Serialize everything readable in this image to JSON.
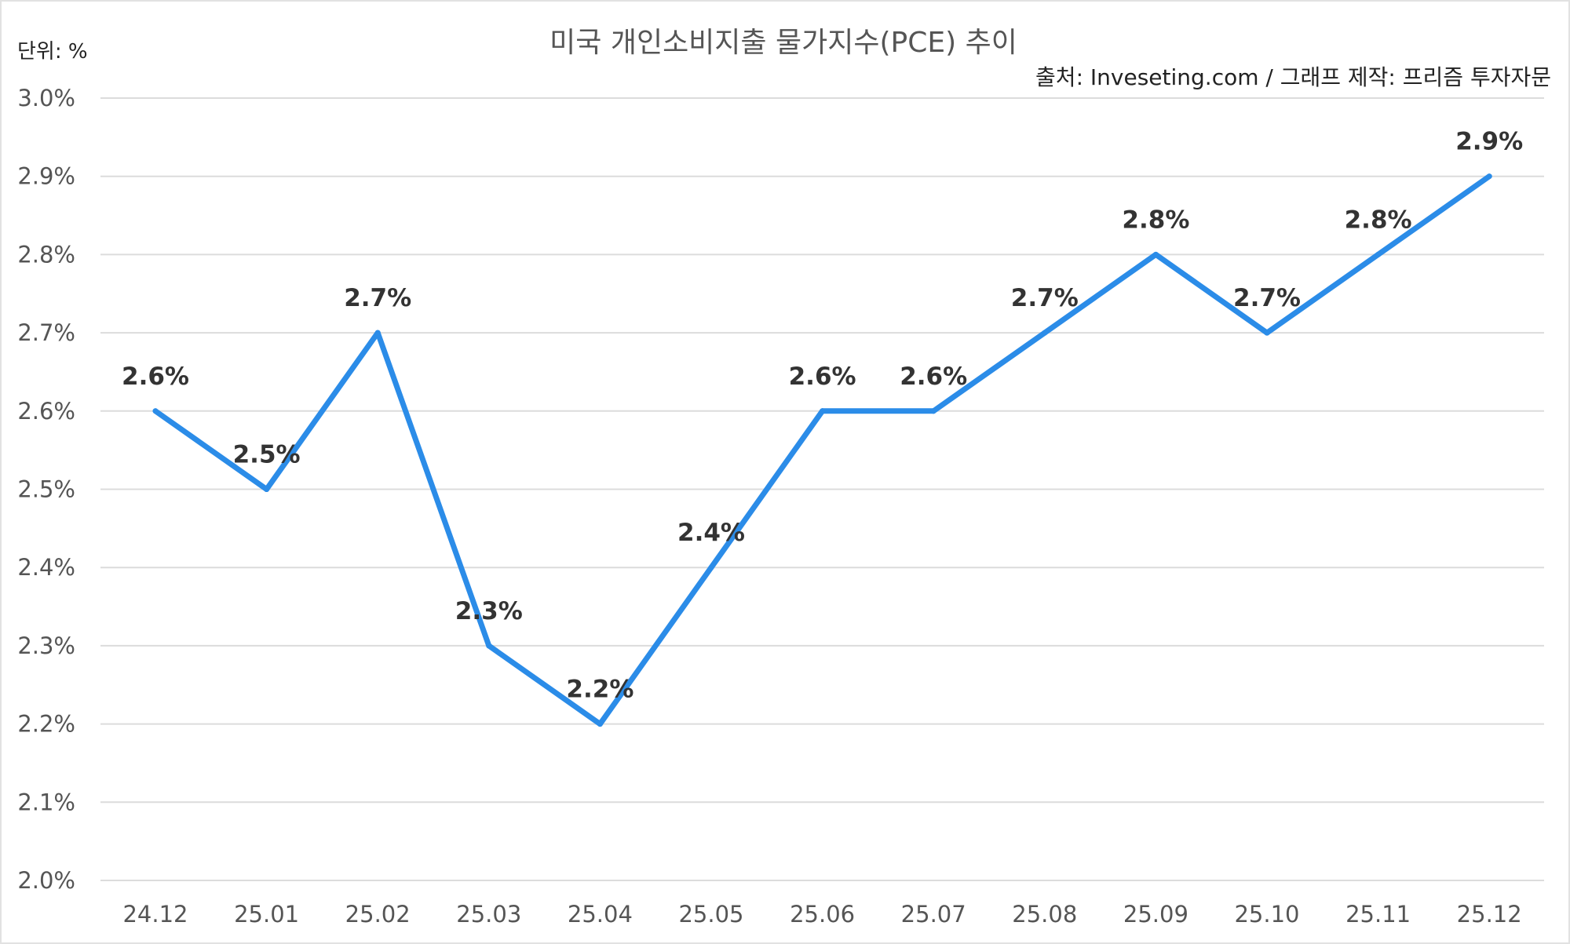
{
  "chart_data": {
    "type": "line",
    "title": "미국 개인소비지출 물가지수(PCE) 추이",
    "unit_label": "단위: %",
    "source": "출처: Inveseting.com / 그래프 제작: 프리즘 투자자문",
    "categories": [
      "24.12",
      "25.01",
      "25.02",
      "25.03",
      "25.04",
      "25.05",
      "25.06",
      "25.07",
      "25.08",
      "25.09",
      "25.10",
      "25.11",
      "25.12"
    ],
    "series": [
      {
        "name": "PCE",
        "values": [
          2.6,
          2.5,
          2.7,
          2.3,
          2.2,
          2.4,
          2.6,
          2.6,
          2.7,
          2.8,
          2.7,
          2.8,
          2.9
        ],
        "color": "#2b8ce8"
      }
    ],
    "data_labels": [
      "2.6%",
      "2.5%",
      "2.7%",
      "2.3%",
      "2.2%",
      "2.4%",
      "2.6%",
      "2.6%",
      "2.7%",
      "2.8%",
      "2.7%",
      "2.8%",
      "2.9%"
    ],
    "ylim": [
      2.0,
      3.0
    ],
    "yticks": [
      "2.0%",
      "2.1%",
      "2.2%",
      "2.3%",
      "2.4%",
      "2.5%",
      "2.6%",
      "2.7%",
      "2.8%",
      "2.9%",
      "3.0%"
    ],
    "grid": true,
    "legend": "none"
  }
}
